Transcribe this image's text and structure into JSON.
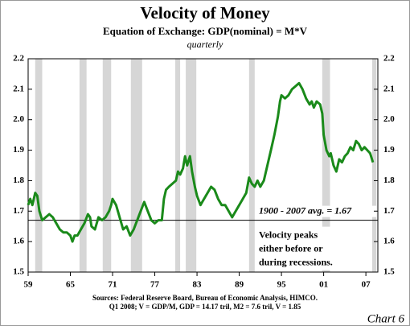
{
  "chart_data": {
    "type": "line",
    "title": "Velocity of Money",
    "subtitle": "Equation of Exchange: GDP(nominal) = M*V",
    "frequency": "quarterly",
    "color": "#1a8a1a",
    "x": [
      1959.0,
      1959.3,
      1959.6,
      1960.0,
      1960.3,
      1960.6,
      1961.0,
      1961.5,
      1962.0,
      1962.5,
      1963.0,
      1963.5,
      1964.0,
      1964.5,
      1965.0,
      1965.3,
      1965.6,
      1966.0,
      1966.5,
      1967.0,
      1967.5,
      1967.8,
      1968.0,
      1968.5,
      1969.0,
      1969.5,
      1970.0,
      1970.5,
      1970.8,
      1971.0,
      1971.5,
      1972.0,
      1972.5,
      1973.0,
      1973.5,
      1974.0,
      1974.5,
      1975.0,
      1975.5,
      1976.0,
      1976.5,
      1977.0,
      1977.5,
      1978.0,
      1978.3,
      1978.6,
      1979.0,
      1979.5,
      1980.0,
      1980.3,
      1980.6,
      1981.0,
      1981.3,
      1981.6,
      1982.0,
      1982.3,
      1982.7,
      1983.0,
      1983.5,
      1984.0,
      1984.5,
      1985.0,
      1985.5,
      1986.0,
      1986.5,
      1987.0,
      1987.5,
      1988.0,
      1988.5,
      1989.0,
      1989.5,
      1990.0,
      1990.4,
      1990.8,
      1991.2,
      1991.6,
      1992.0,
      1992.5,
      1993.0,
      1993.5,
      1994.0,
      1994.5,
      1994.8,
      1995.0,
      1995.5,
      1996.0,
      1996.5,
      1997.0,
      1997.5,
      1998.0,
      1998.5,
      1999.0,
      1999.3,
      1999.6,
      2000.0,
      2000.5,
      2000.8,
      2001.0,
      2001.4,
      2001.8,
      2002.0,
      2002.4,
      2002.8,
      2003.2,
      2003.6,
      2004.0,
      2004.4,
      2004.8,
      2005.2,
      2005.6,
      2006.0,
      2006.4,
      2006.8,
      2007.2,
      2007.6,
      2008.0
    ],
    "values": [
      1.72,
      1.74,
      1.72,
      1.76,
      1.75,
      1.7,
      1.67,
      1.68,
      1.69,
      1.68,
      1.66,
      1.64,
      1.63,
      1.63,
      1.62,
      1.6,
      1.62,
      1.62,
      1.64,
      1.66,
      1.69,
      1.68,
      1.65,
      1.64,
      1.68,
      1.67,
      1.68,
      1.7,
      1.72,
      1.74,
      1.72,
      1.68,
      1.64,
      1.65,
      1.62,
      1.64,
      1.67,
      1.7,
      1.73,
      1.7,
      1.67,
      1.66,
      1.67,
      1.67,
      1.74,
      1.77,
      1.78,
      1.79,
      1.8,
      1.83,
      1.82,
      1.84,
      1.88,
      1.85,
      1.88,
      1.83,
      1.78,
      1.75,
      1.72,
      1.74,
      1.76,
      1.78,
      1.77,
      1.74,
      1.72,
      1.72,
      1.7,
      1.68,
      1.7,
      1.72,
      1.74,
      1.76,
      1.81,
      1.79,
      1.78,
      1.8,
      1.78,
      1.8,
      1.85,
      1.9,
      1.95,
      2.01,
      2.06,
      2.08,
      2.07,
      2.08,
      2.1,
      2.11,
      2.12,
      2.1,
      2.07,
      2.05,
      2.06,
      2.04,
      2.06,
      2.05,
      2.02,
      1.95,
      1.9,
      1.88,
      1.89,
      1.85,
      1.83,
      1.87,
      1.86,
      1.88,
      1.89,
      1.91,
      1.9,
      1.93,
      1.92,
      1.9,
      1.91,
      1.9,
      1.89,
      1.86
    ],
    "recessions": [
      [
        1960.0,
        1961.0
      ],
      [
        1966.3,
        1967.3
      ],
      [
        1969.6,
        1970.8
      ],
      [
        1973.6,
        1975.2
      ],
      [
        1979.9,
        1980.6
      ],
      [
        1981.4,
        1982.9
      ],
      [
        1990.4,
        1991.2
      ],
      [
        2000.8,
        2001.9
      ],
      [
        2007.9,
        2008.5
      ]
    ],
    "average": 1.67,
    "average_label": "1900 - 2007 avg. = 1.67",
    "annotation": [
      "Velocity peaks",
      "either before or",
      "during recessions."
    ],
    "sources": [
      "Sources: Federal Reserve Board, Bureau of Economic Analysis, HIMCO.",
      "Q1 2008; V = GDP/M, GDP = 14.17 tril, M2 = 7.6 tril, V = 1.85"
    ],
    "chart_label": "Chart 6",
    "xlim": [
      1959,
      2008.7
    ],
    "xticks": [
      {
        "value": 1959,
        "label": "59"
      },
      {
        "value": 1965,
        "label": "65"
      },
      {
        "value": 1971,
        "label": "71"
      },
      {
        "value": 1977,
        "label": "77"
      },
      {
        "value": 1983,
        "label": "83"
      },
      {
        "value": 1989,
        "label": "89"
      },
      {
        "value": 1995,
        "label": "95"
      },
      {
        "value": 2001,
        "label": "01"
      },
      {
        "value": 2007,
        "label": "07"
      }
    ],
    "ylim": [
      1.5,
      2.2
    ],
    "yticks": [
      1.5,
      1.6,
      1.7,
      1.8,
      1.9,
      {
        "value": 2.0,
        "label": "2.0"
      },
      2.1,
      2.2
    ],
    "grid": false
  }
}
